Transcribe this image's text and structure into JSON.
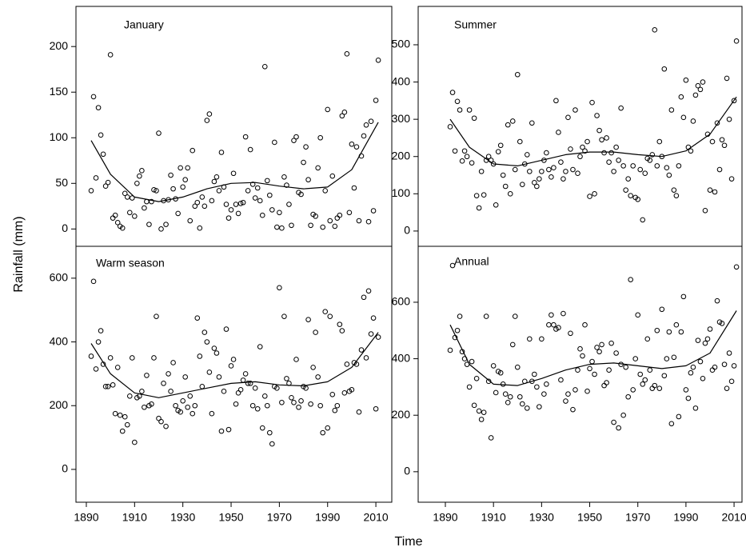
{
  "axis_labels": {
    "x": "Time",
    "y": "Rainfall (mm)"
  },
  "chart_data": [
    {
      "type": "scatter",
      "title": "January",
      "x": [
        1892,
        1893,
        1894,
        1895,
        1896,
        1897,
        1898,
        1899,
        1900,
        1901,
        1902,
        1903,
        1904,
        1905,
        1906,
        1907,
        1908,
        1909,
        1910,
        1911,
        1912,
        1913,
        1914,
        1915,
        1916,
        1917,
        1918,
        1919,
        1920,
        1921,
        1922,
        1923,
        1924,
        1925,
        1926,
        1927,
        1928,
        1929,
        1930,
        1931,
        1932,
        1933,
        1934,
        1935,
        1936,
        1937,
        1938,
        1939,
        1940,
        1941,
        1942,
        1943,
        1944,
        1945,
        1946,
        1947,
        1948,
        1949,
        1950,
        1951,
        1952,
        1953,
        1954,
        1955,
        1956,
        1957,
        1958,
        1959,
        1960,
        1961,
        1962,
        1963,
        1964,
        1965,
        1966,
        1967,
        1968,
        1969,
        1970,
        1971,
        1972,
        1973,
        1974,
        1975,
        1976,
        1977,
        1978,
        1979,
        1980,
        1981,
        1982,
        1983,
        1984,
        1985,
        1986,
        1987,
        1988,
        1989,
        1990,
        1991,
        1992,
        1993,
        1994,
        1995,
        1996,
        1997,
        1998,
        1999,
        2000,
        2001,
        2002,
        2003,
        2004,
        2005,
        2006,
        2007,
        2008,
        2009,
        2010,
        2011
      ],
      "values": [
        42,
        145,
        56,
        133,
        103,
        82,
        47,
        51,
        191,
        12,
        15,
        7,
        3,
        1,
        39,
        35,
        18,
        34,
        14,
        50,
        58,
        64,
        23,
        30,
        5,
        30,
        43,
        42,
        105,
        0,
        31,
        5,
        32,
        59,
        44,
        33,
        17,
        67,
        46,
        54,
        67,
        9,
        86,
        25,
        29,
        1,
        35,
        25,
        119,
        126,
        31,
        52,
        57,
        42,
        84,
        46,
        27,
        12,
        21,
        61,
        27,
        17,
        28,
        29,
        101,
        42,
        87,
        49,
        34,
        45,
        31,
        15,
        178,
        53,
        37,
        21,
        95,
        2,
        18,
        1,
        57,
        48,
        27,
        4,
        97,
        101,
        40,
        38,
        73,
        90,
        54,
        4,
        16,
        14,
        67,
        100,
        2,
        42,
        131,
        9,
        58,
        3,
        12,
        15,
        124,
        128,
        192,
        18,
        93,
        45,
        90,
        9,
        80,
        102,
        114,
        8,
        118,
        20,
        141,
        185
      ],
      "fit_x": [
        1892,
        1900,
        1910,
        1920,
        1930,
        1940,
        1950,
        1960,
        1970,
        1980,
        1990,
        2000,
        2011
      ],
      "fit": [
        97,
        60,
        35,
        30,
        35,
        44,
        50,
        51,
        47,
        44,
        46,
        65,
        117
      ],
      "color": "#000000",
      "xlim": [
        1885.7,
        2016.6
      ],
      "ylim": [
        -19,
        244
      ],
      "yticks": [
        0,
        50,
        100,
        150,
        200
      ]
    },
    {
      "type": "scatter",
      "title": "Summer",
      "x": [
        1892,
        1893,
        1894,
        1895,
        1896,
        1897,
        1898,
        1899,
        1900,
        1901,
        1902,
        1903,
        1904,
        1905,
        1906,
        1907,
        1908,
        1909,
        1910,
        1911,
        1912,
        1913,
        1914,
        1915,
        1916,
        1917,
        1918,
        1919,
        1920,
        1921,
        1922,
        1923,
        1924,
        1925,
        1926,
        1927,
        1928,
        1929,
        1930,
        1931,
        1932,
        1933,
        1934,
        1935,
        1936,
        1937,
        1938,
        1939,
        1940,
        1941,
        1942,
        1943,
        1944,
        1945,
        1946,
        1947,
        1948,
        1949,
        1950,
        1951,
        1952,
        1953,
        1954,
        1955,
        1956,
        1957,
        1958,
        1959,
        1960,
        1961,
        1962,
        1963,
        1964,
        1965,
        1966,
        1967,
        1968,
        1969,
        1970,
        1971,
        1972,
        1973,
        1974,
        1975,
        1976,
        1977,
        1978,
        1979,
        1980,
        1981,
        1982,
        1983,
        1984,
        1985,
        1986,
        1987,
        1988,
        1989,
        1990,
        1991,
        1992,
        1993,
        1994,
        1995,
        1996,
        1997,
        1998,
        1999,
        2000,
        2001,
        2002,
        2003,
        2004,
        2005,
        2006,
        2007,
        2008,
        2009,
        2010,
        2011
      ],
      "values": [
        280,
        372,
        215,
        348,
        325,
        188,
        215,
        200,
        325,
        183,
        303,
        95,
        62,
        160,
        97,
        190,
        200,
        190,
        180,
        70,
        213,
        230,
        150,
        120,
        285,
        100,
        295,
        165,
        420,
        240,
        125,
        180,
        205,
        160,
        290,
        130,
        120,
        140,
        160,
        190,
        210,
        165,
        145,
        170,
        350,
        265,
        185,
        140,
        160,
        305,
        220,
        165,
        325,
        155,
        200,
        225,
        215,
        240,
        93,
        345,
        100,
        310,
        270,
        245,
        210,
        250,
        185,
        210,
        160,
        225,
        190,
        330,
        175,
        110,
        140,
        95,
        175,
        90,
        85,
        165,
        30,
        155,
        195,
        190,
        205,
        540,
        175,
        240,
        200,
        435,
        170,
        150,
        325,
        110,
        95,
        175,
        360,
        305,
        405,
        225,
        215,
        295,
        365,
        390,
        380,
        400,
        55,
        260,
        110,
        240,
        105,
        290,
        165,
        245,
        230,
        410,
        300,
        140,
        350,
        510
      ],
      "fit_x": [
        1892,
        1900,
        1910,
        1920,
        1930,
        1940,
        1950,
        1960,
        1970,
        1980,
        1990,
        2000,
        2011
      ],
      "fit": [
        300,
        225,
        180,
        175,
        190,
        205,
        212,
        212,
        205,
        200,
        215,
        260,
        360
      ],
      "color": "#000000",
      "xlim": [
        1878.7,
        2013.3
      ],
      "ylim": [
        -41,
        603
      ],
      "yticks": [
        0,
        100,
        200,
        300,
        400,
        500
      ]
    },
    {
      "type": "scatter",
      "title": "Warm season",
      "x": [
        1892,
        1893,
        1894,
        1895,
        1896,
        1897,
        1898,
        1899,
        1900,
        1901,
        1902,
        1903,
        1904,
        1905,
        1906,
        1907,
        1908,
        1909,
        1910,
        1911,
        1912,
        1913,
        1914,
        1915,
        1916,
        1917,
        1918,
        1919,
        1920,
        1921,
        1922,
        1923,
        1924,
        1925,
        1926,
        1927,
        1928,
        1929,
        1930,
        1931,
        1932,
        1933,
        1934,
        1935,
        1936,
        1937,
        1938,
        1939,
        1940,
        1941,
        1942,
        1943,
        1944,
        1945,
        1946,
        1947,
        1948,
        1949,
        1950,
        1951,
        1952,
        1953,
        1954,
        1955,
        1956,
        1957,
        1958,
        1959,
        1960,
        1961,
        1962,
        1963,
        1964,
        1965,
        1966,
        1967,
        1968,
        1969,
        1970,
        1971,
        1972,
        1973,
        1974,
        1975,
        1976,
        1977,
        1978,
        1979,
        1980,
        1981,
        1982,
        1983,
        1984,
        1985,
        1986,
        1987,
        1988,
        1989,
        1990,
        1991,
        1992,
        1993,
        1994,
        1995,
        1996,
        1997,
        1998,
        1999,
        2000,
        2001,
        2002,
        2003,
        2004,
        2005,
        2006,
        2007,
        2008,
        2009,
        2010,
        2011
      ],
      "values": [
        355,
        590,
        315,
        400,
        435,
        330,
        260,
        260,
        350,
        265,
        175,
        320,
        170,
        120,
        165,
        140,
        230,
        350,
        85,
        225,
        230,
        245,
        195,
        295,
        200,
        205,
        350,
        480,
        160,
        150,
        270,
        135,
        300,
        245,
        335,
        200,
        185,
        180,
        215,
        290,
        195,
        230,
        175,
        200,
        475,
        355,
        260,
        430,
        400,
        305,
        175,
        380,
        365,
        290,
        120,
        245,
        440,
        125,
        325,
        345,
        205,
        240,
        250,
        280,
        300,
        270,
        270,
        200,
        255,
        190,
        385,
        130,
        230,
        200,
        115,
        80,
        260,
        255,
        570,
        210,
        480,
        285,
        270,
        225,
        210,
        345,
        195,
        215,
        260,
        255,
        470,
        205,
        320,
        430,
        290,
        200,
        115,
        495,
        130,
        480,
        235,
        185,
        200,
        455,
        435,
        240,
        330,
        245,
        250,
        335,
        330,
        180,
        375,
        540,
        350,
        560,
        425,
        475,
        190,
        415
      ],
      "fit_x": [
        1892,
        1900,
        1910,
        1920,
        1930,
        1940,
        1950,
        1960,
        1970,
        1980,
        1990,
        2000,
        2011
      ],
      "fit": [
        395,
        300,
        240,
        225,
        240,
        255,
        270,
        275,
        265,
        262,
        275,
        320,
        430
      ],
      "color": "#000000",
      "xlim": [
        1885.7,
        2016.6
      ],
      "ylim": [
        -103,
        700
      ],
      "yticks": [
        0,
        200,
        400,
        600
      ],
      "xticks": [
        1890,
        1910,
        1930,
        1950,
        1970,
        1990,
        2010
      ]
    },
    {
      "type": "scatter",
      "title": "Annual",
      "x": [
        1892,
        1893,
        1894,
        1895,
        1896,
        1897,
        1898,
        1899,
        1900,
        1901,
        1902,
        1903,
        1904,
        1905,
        1906,
        1907,
        1908,
        1909,
        1910,
        1911,
        1912,
        1913,
        1914,
        1915,
        1916,
        1917,
        1918,
        1919,
        1920,
        1921,
        1922,
        1923,
        1924,
        1925,
        1926,
        1927,
        1928,
        1929,
        1930,
        1931,
        1932,
        1933,
        1934,
        1935,
        1936,
        1937,
        1938,
        1939,
        1940,
        1941,
        1942,
        1943,
        1944,
        1945,
        1946,
        1947,
        1948,
        1949,
        1950,
        1951,
        1952,
        1953,
        1954,
        1955,
        1956,
        1957,
        1958,
        1959,
        1960,
        1961,
        1962,
        1963,
        1964,
        1965,
        1966,
        1967,
        1968,
        1969,
        1970,
        1971,
        1972,
        1973,
        1974,
        1975,
        1976,
        1977,
        1978,
        1979,
        1980,
        1981,
        1982,
        1983,
        1984,
        1985,
        1986,
        1987,
        1988,
        1989,
        1990,
        1991,
        1992,
        1993,
        1994,
        1995,
        1996,
        1997,
        1998,
        1999,
        2000,
        2001,
        2002,
        2003,
        2004,
        2005,
        2006,
        2007,
        2008,
        2009,
        2010,
        2011
      ],
      "values": [
        430,
        730,
        475,
        500,
        550,
        425,
        400,
        380,
        300,
        390,
        235,
        330,
        215,
        185,
        210,
        550,
        320,
        120,
        375,
        280,
        355,
        350,
        310,
        275,
        245,
        265,
        450,
        550,
        370,
        265,
        240,
        320,
        225,
        470,
        320,
        345,
        300,
        230,
        470,
        275,
        310,
        520,
        555,
        520,
        505,
        510,
        325,
        560,
        250,
        275,
        490,
        220,
        290,
        360,
        435,
        410,
        520,
        285,
        365,
        390,
        345,
        440,
        425,
        450,
        305,
        315,
        360,
        455,
        175,
        420,
        155,
        380,
        200,
        370,
        265,
        680,
        290,
        400,
        555,
        345,
        310,
        325,
        470,
        360,
        295,
        305,
        500,
        295,
        575,
        340,
        400,
        495,
        170,
        405,
        520,
        195,
        495,
        620,
        290,
        260,
        350,
        370,
        225,
        465,
        390,
        330,
        455,
        470,
        505,
        360,
        370,
        605,
        530,
        525,
        380,
        295,
        420,
        320,
        375,
        725
      ],
      "fit_x": [
        1892,
        1900,
        1910,
        1920,
        1930,
        1940,
        1950,
        1960,
        1970,
        1980,
        1990,
        2000,
        2011
      ],
      "fit": [
        520,
        380,
        310,
        305,
        330,
        360,
        380,
        385,
        375,
        365,
        375,
        420,
        570
      ],
      "color": "#000000",
      "xlim": [
        1878.7,
        2013.3
      ],
      "ylim": [
        -108,
        798
      ],
      "yticks": [
        0,
        200,
        400,
        600
      ],
      "xticks": [
        1890,
        1910,
        1930,
        1950,
        1970,
        1990,
        2010
      ]
    }
  ]
}
